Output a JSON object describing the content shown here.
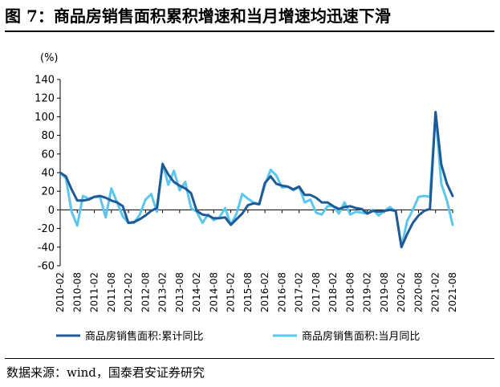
{
  "title": "图  7：商品房销售面积累积增速和当月增速均迅速下滑",
  "source": "数据来源：wind，国泰君安证券研究",
  "chart_data": {
    "type": "line",
    "unit_label": "(%)",
    "ylim": [
      -60,
      140
    ],
    "yticks": [
      -60,
      -40,
      -20,
      0,
      20,
      40,
      60,
      80,
      100,
      120,
      140
    ],
    "x_start": "2010-02",
    "x_end": "2021-08",
    "x_ticks": [
      "2010-02",
      "2010-08",
      "2011-02",
      "2011-08",
      "2012-02",
      "2012-08",
      "2013-02",
      "2013-08",
      "2014-02",
      "2014-08",
      "2015-02",
      "2015-08",
      "2016-02",
      "2016-08",
      "2017-02",
      "2017-08",
      "2018-02",
      "2018-08",
      "2019-02",
      "2019-08",
      "2020-02",
      "2020-08",
      "2021-02",
      "2021-08"
    ],
    "grid": false,
    "legend_position": "bottom",
    "series": [
      {
        "name": "商品房销售面积:累计同比",
        "color": "#1f5a96",
        "points": [
          [
            "2010-02",
            40
          ],
          [
            "2010-04",
            36
          ],
          [
            "2010-06",
            22
          ],
          [
            "2010-08",
            10
          ],
          [
            "2010-10",
            10
          ],
          [
            "2010-12",
            11
          ],
          [
            "2011-02",
            14
          ],
          [
            "2011-04",
            15
          ],
          [
            "2011-06",
            13
          ],
          [
            "2011-08",
            10
          ],
          [
            "2011-10",
            8
          ],
          [
            "2011-12",
            4
          ],
          [
            "2012-02",
            -14
          ],
          [
            "2012-04",
            -13
          ],
          [
            "2012-06",
            -10
          ],
          [
            "2012-08",
            -6
          ],
          [
            "2012-10",
            -1
          ],
          [
            "2012-12",
            2
          ],
          [
            "2013-02",
            49
          ],
          [
            "2013-04",
            38
          ],
          [
            "2013-06",
            30
          ],
          [
            "2013-08",
            26
          ],
          [
            "2013-10",
            23
          ],
          [
            "2013-12",
            18
          ],
          [
            "2014-02",
            -1
          ],
          [
            "2014-04",
            -5
          ],
          [
            "2014-06",
            -6
          ],
          [
            "2014-08",
            -9
          ],
          [
            "2014-10",
            -9
          ],
          [
            "2014-12",
            -8
          ],
          [
            "2015-02",
            -16
          ],
          [
            "2015-04",
            -10
          ],
          [
            "2015-06",
            -4
          ],
          [
            "2015-08",
            5
          ],
          [
            "2015-10",
            7
          ],
          [
            "2015-12",
            6
          ],
          [
            "2016-02",
            29
          ],
          [
            "2016-04",
            36
          ],
          [
            "2016-06",
            28
          ],
          [
            "2016-08",
            26
          ],
          [
            "2016-10",
            25
          ],
          [
            "2016-12",
            22
          ],
          [
            "2017-02",
            25
          ],
          [
            "2017-04",
            16
          ],
          [
            "2017-06",
            16
          ],
          [
            "2017-08",
            13
          ],
          [
            "2017-10",
            8
          ],
          [
            "2017-12",
            8
          ],
          [
            "2018-02",
            4
          ],
          [
            "2018-04",
            1
          ],
          [
            "2018-06",
            3
          ],
          [
            "2018-08",
            4
          ],
          [
            "2018-10",
            2
          ],
          [
            "2018-12",
            1
          ],
          [
            "2019-02",
            -4
          ],
          [
            "2019-04",
            -1
          ],
          [
            "2019-06",
            -2
          ],
          [
            "2019-08",
            -1
          ],
          [
            "2019-10",
            0
          ],
          [
            "2019-12",
            -1
          ],
          [
            "2020-02",
            -40
          ],
          [
            "2020-04",
            -26
          ],
          [
            "2020-06",
            -14
          ],
          [
            "2020-08",
            -6
          ],
          [
            "2020-10",
            -1
          ],
          [
            "2020-12",
            1
          ],
          [
            "2021-02",
            105
          ],
          [
            "2021-04",
            49
          ],
          [
            "2021-06",
            28
          ],
          [
            "2021-08",
            15
          ]
        ]
      },
      {
        "name": "商品房销售面积:当月同比",
        "color": "#5bc6ee",
        "points": [
          [
            "2010-02",
            40
          ],
          [
            "2010-04",
            34
          ],
          [
            "2010-06",
            -2
          ],
          [
            "2010-08",
            -17
          ],
          [
            "2010-10",
            15
          ],
          [
            "2010-12",
            12
          ],
          [
            "2011-02",
            14
          ],
          [
            "2011-04",
            14
          ],
          [
            "2011-06",
            -8
          ],
          [
            "2011-08",
            23
          ],
          [
            "2011-10",
            8
          ],
          [
            "2011-12",
            -7
          ],
          [
            "2012-02",
            -14
          ],
          [
            "2012-04",
            -14
          ],
          [
            "2012-06",
            -5
          ],
          [
            "2012-08",
            11
          ],
          [
            "2012-10",
            17
          ],
          [
            "2012-12",
            -2
          ],
          [
            "2013-02",
            50
          ],
          [
            "2013-04",
            27
          ],
          [
            "2013-06",
            42
          ],
          [
            "2013-08",
            21
          ],
          [
            "2013-10",
            30
          ],
          [
            "2013-12",
            2
          ],
          [
            "2014-02",
            -2
          ],
          [
            "2014-04",
            -14
          ],
          [
            "2014-06",
            -5
          ],
          [
            "2014-08",
            -11
          ],
          [
            "2014-10",
            -8
          ],
          [
            "2014-12",
            2
          ],
          [
            "2015-02",
            -16
          ],
          [
            "2015-04",
            -4
          ],
          [
            "2015-06",
            17
          ],
          [
            "2015-08",
            12
          ],
          [
            "2015-10",
            8
          ],
          [
            "2015-12",
            6
          ],
          [
            "2016-02",
            27
          ],
          [
            "2016-04",
            43
          ],
          [
            "2016-06",
            37
          ],
          [
            "2016-08",
            24
          ],
          [
            "2016-10",
            25
          ],
          [
            "2016-12",
            21
          ],
          [
            "2017-02",
            25
          ],
          [
            "2017-04",
            8
          ],
          [
            "2017-06",
            11
          ],
          [
            "2017-08",
            -3
          ],
          [
            "2017-10",
            -5
          ],
          [
            "2017-12",
            4
          ],
          [
            "2018-02",
            4
          ],
          [
            "2018-04",
            -4
          ],
          [
            "2018-06",
            8
          ],
          [
            "2018-08",
            -5
          ],
          [
            "2018-10",
            -2
          ],
          [
            "2018-12",
            -3
          ],
          [
            "2019-02",
            -4
          ],
          [
            "2019-04",
            0
          ],
          [
            "2019-06",
            -6
          ],
          [
            "2019-08",
            -1
          ],
          [
            "2019-10",
            3
          ],
          [
            "2019-12",
            -2
          ],
          [
            "2020-02",
            -40
          ],
          [
            "2020-04",
            -12
          ],
          [
            "2020-06",
            0
          ],
          [
            "2020-08",
            14
          ],
          [
            "2020-10",
            15
          ],
          [
            "2020-12",
            14
          ],
          [
            "2021-02",
            105
          ],
          [
            "2021-04",
            28
          ],
          [
            "2021-06",
            10
          ],
          [
            "2021-08",
            -16
          ]
        ]
      }
    ]
  }
}
